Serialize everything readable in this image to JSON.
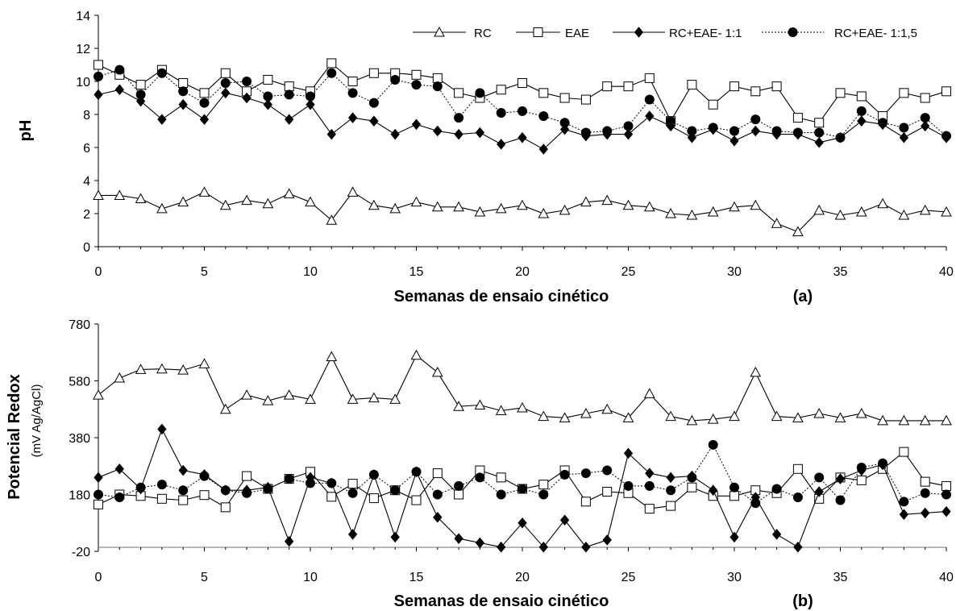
{
  "chart_data": [
    {
      "type": "line",
      "panel_label": "(a)",
      "xlabel": "Semanas de ensaio cinético",
      "ylabel": "pH",
      "ylabel_unit": "",
      "xlim": [
        0,
        40
      ],
      "ylim": [
        0,
        14
      ],
      "xticks": [
        0,
        5,
        10,
        15,
        20,
        25,
        30,
        35,
        40
      ],
      "yticks": [
        0,
        2,
        4,
        6,
        8,
        10,
        12,
        14
      ],
      "ytick_labels": [
        "0",
        "2",
        "4",
        "6",
        "8",
        "10",
        "12",
        "14"
      ],
      "grid": false,
      "legend_position": "top-right",
      "x": [
        0,
        1,
        2,
        3,
        4,
        5,
        6,
        7,
        8,
        9,
        10,
        11,
        12,
        13,
        14,
        15,
        16,
        17,
        18,
        19,
        20,
        21,
        22,
        23,
        24,
        25,
        26,
        27,
        28,
        29,
        30,
        31,
        32,
        33,
        34,
        35,
        36,
        37,
        38,
        39,
        40
      ],
      "series": [
        {
          "name": "RC",
          "marker": "triangle",
          "line": "solid",
          "values": [
            3.1,
            3.1,
            2.9,
            2.3,
            2.7,
            3.3,
            2.5,
            2.8,
            2.6,
            3.2,
            2.7,
            1.6,
            3.3,
            2.5,
            2.3,
            2.7,
            2.4,
            2.4,
            2.1,
            2.3,
            2.5,
            2.0,
            2.2,
            2.7,
            2.8,
            2.5,
            2.4,
            2.0,
            1.9,
            2.1,
            2.4,
            2.5,
            1.4,
            0.9,
            2.2,
            1.9,
            2.1,
            2.6,
            1.9,
            2.2,
            2.1
          ]
        },
        {
          "name": "EAE",
          "marker": "square",
          "line": "solid",
          "values": [
            11.0,
            10.4,
            9.8,
            10.7,
            9.9,
            9.3,
            10.5,
            9.4,
            10.1,
            9.7,
            9.4,
            11.1,
            10.0,
            10.5,
            10.5,
            10.4,
            10.2,
            9.3,
            9.0,
            9.5,
            9.9,
            9.3,
            9.0,
            8.9,
            9.7,
            9.7,
            10.2,
            7.6,
            9.8,
            8.6,
            9.7,
            9.4,
            9.7,
            7.8,
            7.5,
            9.3,
            9.1,
            7.9,
            9.3,
            9.0,
            9.4
          ]
        },
        {
          "name": "RC+EAE- 1:1",
          "marker": "diamond",
          "line": "solid",
          "values": [
            9.2,
            9.5,
            8.8,
            7.7,
            8.6,
            7.7,
            9.3,
            9.0,
            8.6,
            7.7,
            8.6,
            6.8,
            7.8,
            7.6,
            6.8,
            7.4,
            7.0,
            6.8,
            6.9,
            6.2,
            6.6,
            5.9,
            7.1,
            6.7,
            6.8,
            6.8,
            7.9,
            7.3,
            6.6,
            7.1,
            6.4,
            7.0,
            6.8,
            6.8,
            6.3,
            6.6,
            7.6,
            7.4,
            6.6,
            7.3,
            6.6
          ]
        },
        {
          "name": "RC+EAE- 1:1,5",
          "marker": "circle",
          "line": "dotted",
          "values": [
            10.3,
            10.7,
            9.2,
            10.5,
            9.4,
            8.7,
            9.9,
            10.0,
            9.1,
            9.2,
            9.1,
            10.5,
            9.3,
            8.7,
            10.1,
            9.8,
            9.7,
            7.8,
            9.3,
            8.1,
            8.2,
            7.9,
            7.5,
            6.9,
            7.0,
            7.3,
            8.9,
            7.6,
            7.0,
            7.2,
            7.0,
            7.7,
            7.0,
            6.9,
            6.9,
            6.6,
            8.2,
            7.5,
            7.2,
            7.8,
            6.7
          ]
        }
      ]
    },
    {
      "type": "line",
      "panel_label": "(b)",
      "xlabel": "Semanas de ensaio cinético",
      "ylabel": "Potencial  Redox",
      "ylabel_unit": "(mV Ag/AgCl)",
      "xlim": [
        0,
        40
      ],
      "ylim": [
        -20,
        780
      ],
      "xticks": [
        0,
        5,
        10,
        15,
        20,
        25,
        30,
        35,
        40
      ],
      "yticks": [
        -20,
        180,
        380,
        580,
        780
      ],
      "ytick_labels": [
        "-20",
        "180",
        "380",
        "580",
        "780"
      ],
      "grid": false,
      "legend_position": "none",
      "x": [
        0,
        1,
        2,
        3,
        4,
        5,
        6,
        7,
        8,
        9,
        10,
        11,
        12,
        13,
        14,
        15,
        16,
        17,
        18,
        19,
        20,
        21,
        22,
        23,
        24,
        25,
        26,
        27,
        28,
        29,
        30,
        31,
        32,
        33,
        34,
        35,
        36,
        37,
        38,
        39,
        40
      ],
      "series": [
        {
          "name": "RC",
          "marker": "triangle",
          "line": "solid",
          "values": [
            530,
            590,
            620,
            622,
            618,
            640,
            480,
            530,
            510,
            530,
            515,
            665,
            515,
            520,
            515,
            670,
            610,
            490,
            495,
            475,
            485,
            455,
            450,
            465,
            480,
            450,
            535,
            455,
            440,
            445,
            455,
            610,
            455,
            450,
            465,
            450,
            465,
            440,
            440,
            440,
            440
          ]
        },
        {
          "name": "EAE",
          "marker": "square",
          "line": "solid",
          "values": [
            145,
            180,
            175,
            165,
            160,
            178,
            135,
            245,
            200,
            235,
            260,
            172,
            218,
            167,
            195,
            160,
            255,
            180,
            265,
            240,
            200,
            215,
            265,
            155,
            190,
            185,
            130,
            140,
            205,
            175,
            175,
            195,
            185,
            270,
            165,
            240,
            230,
            270,
            330,
            225,
            210
          ]
        },
        {
          "name": "RC+EAE- 1:1",
          "marker": "diamond",
          "line": "solid",
          "values": [
            240,
            270,
            200,
            410,
            265,
            250,
            195,
            195,
            205,
            15,
            240,
            220,
            40,
            250,
            30,
            260,
            100,
            25,
            10,
            -5,
            80,
            -5,
            90,
            -5,
            20,
            325,
            255,
            240,
            245,
            195,
            30,
            170,
            40,
            -5,
            190,
            235,
            265,
            285,
            110,
            115,
            120
          ]
        },
        {
          "name": "RC+EAE- 1:1,5",
          "marker": "circle",
          "line": "dotted",
          "values": [
            180,
            170,
            205,
            215,
            195,
            245,
            195,
            185,
            200,
            235,
            220,
            220,
            185,
            250,
            195,
            260,
            180,
            210,
            240,
            180,
            200,
            180,
            250,
            255,
            265,
            210,
            210,
            195,
            240,
            355,
            205,
            150,
            200,
            170,
            240,
            160,
            275,
            290,
            155,
            185,
            180
          ]
        }
      ]
    }
  ]
}
